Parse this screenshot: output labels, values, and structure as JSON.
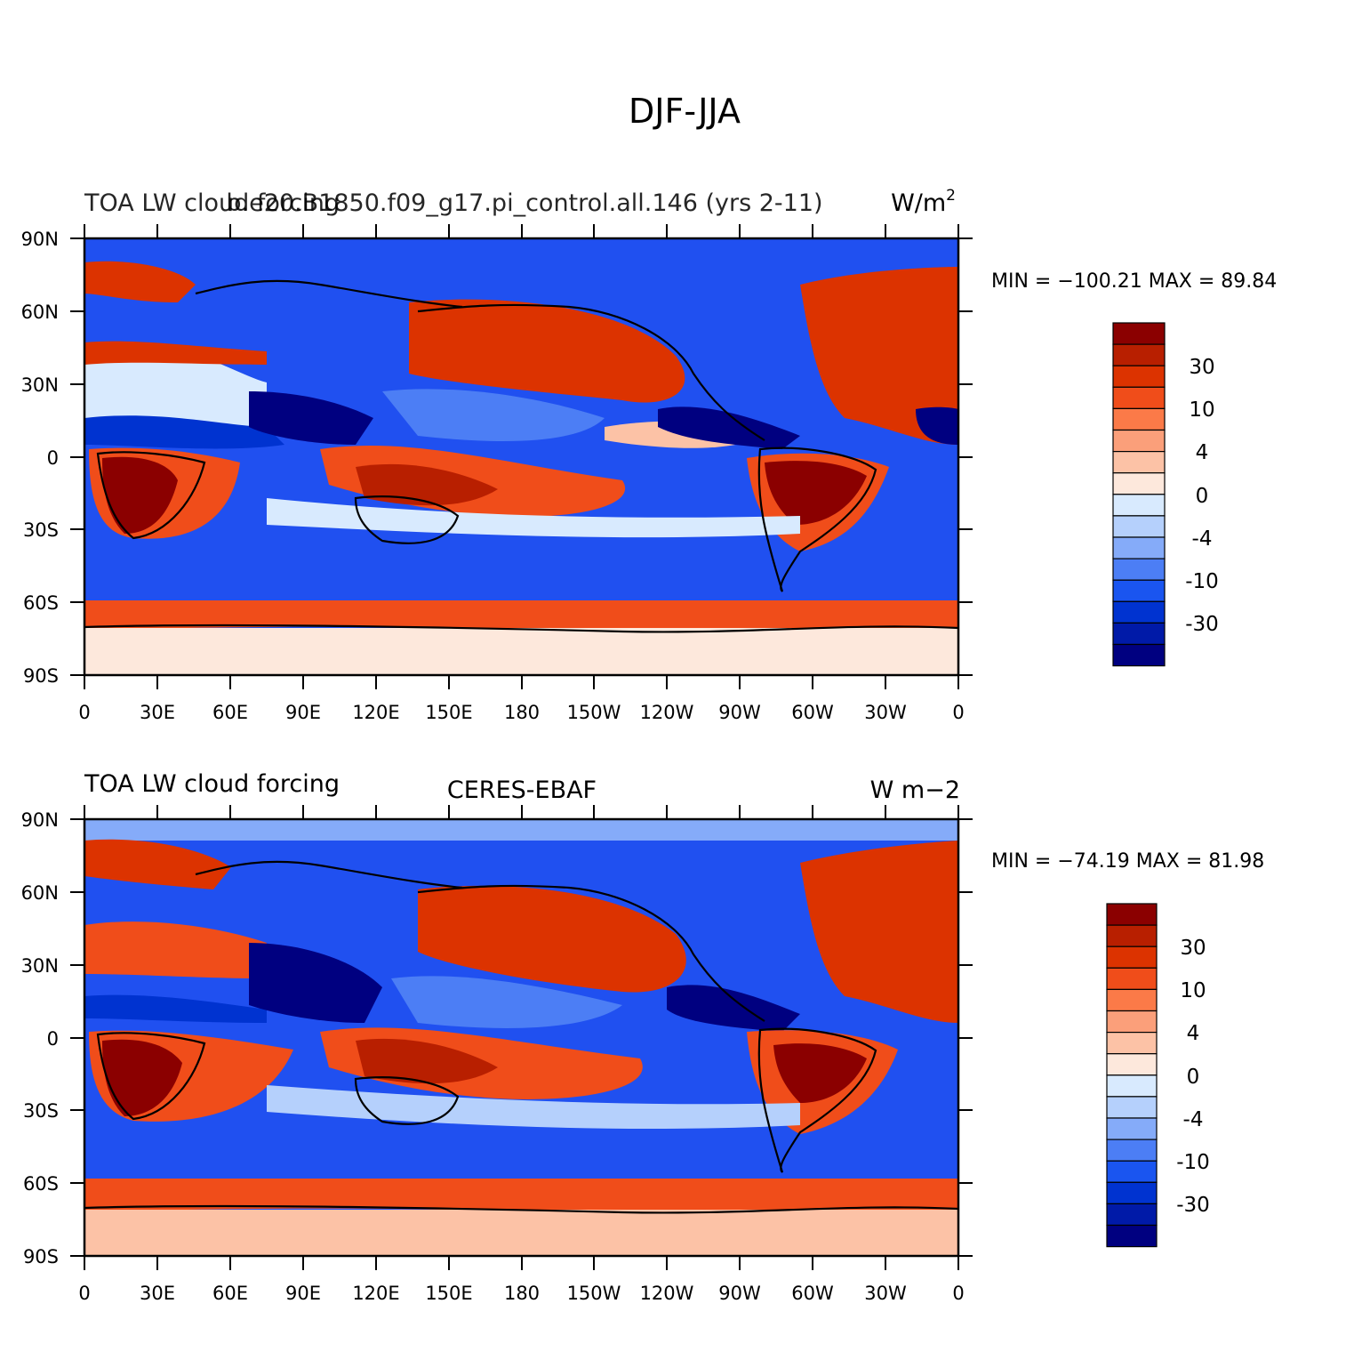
{
  "figure": {
    "title": "DJF-JJA"
  },
  "colorbar": {
    "colors": [
      "#000080",
      "#001aa8",
      "#0033d0",
      "#1a55f0",
      "#4c7ef5",
      "#85abf9",
      "#b5d0fc",
      "#d8eafe",
      "#fde8dc",
      "#fcc2a6",
      "#fb9f7a",
      "#fb7a48",
      "#f04d1a",
      "#dc3300",
      "#b81f00",
      "#8b0000"
    ],
    "labels": [
      "30",
      "10",
      "4",
      "0",
      "-4",
      "-10",
      "-30"
    ]
  },
  "x_ticks": [
    "0",
    "30E",
    "60E",
    "90E",
    "120E",
    "150E",
    "180",
    "150W",
    "120W",
    "90W",
    "60W",
    "30W",
    "0"
  ],
  "y_ticks": [
    "90N",
    "60N",
    "30N",
    "0",
    "30S",
    "60S",
    "90S"
  ],
  "panels": [
    {
      "left_title": "TOA LW cloud forcing",
      "center_title": "b.e20.B1850.f09_g17.pi_control.all.146 (yrs 2-11)",
      "right_title_base": "W/m",
      "right_title_sup": "2",
      "stats": "MIN = −100.21  MAX =  89.84"
    },
    {
      "left_title": "TOA LW cloud forcing",
      "center_title": "CERES-EBAF",
      "right_title": "W m−2",
      "stats": "MIN = −74.19  MAX =  81.98"
    }
  ]
}
